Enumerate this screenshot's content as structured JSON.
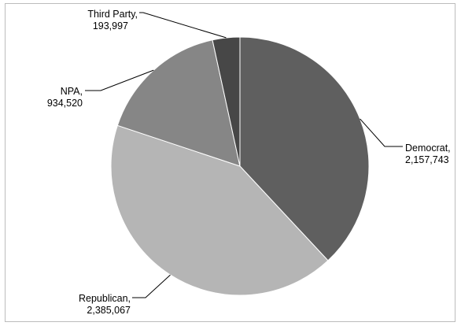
{
  "chart_data": {
    "type": "pie",
    "title": "",
    "slices": [
      {
        "name": "Democrat",
        "value": 2157743,
        "name_text": "Democrat,",
        "value_text": "2,157,743",
        "color": "#5f5f5f"
      },
      {
        "name": "Republican",
        "value": 2385067,
        "name_text": "Republican,",
        "value_text": "2,385,067",
        "color": "#b5b5b5"
      },
      {
        "name": "NPA",
        "value": 934520,
        "name_text": "NPA,",
        "value_text": "934,520",
        "color": "#868686"
      },
      {
        "name": "Third Party",
        "value": 193997,
        "name_text": "Third Party,",
        "value_text": "193,997",
        "color": "#474747"
      }
    ],
    "start_angle": "12 o'clock",
    "direction": "clockwise",
    "legend": "none",
    "labels": "outside with leader lines"
  }
}
